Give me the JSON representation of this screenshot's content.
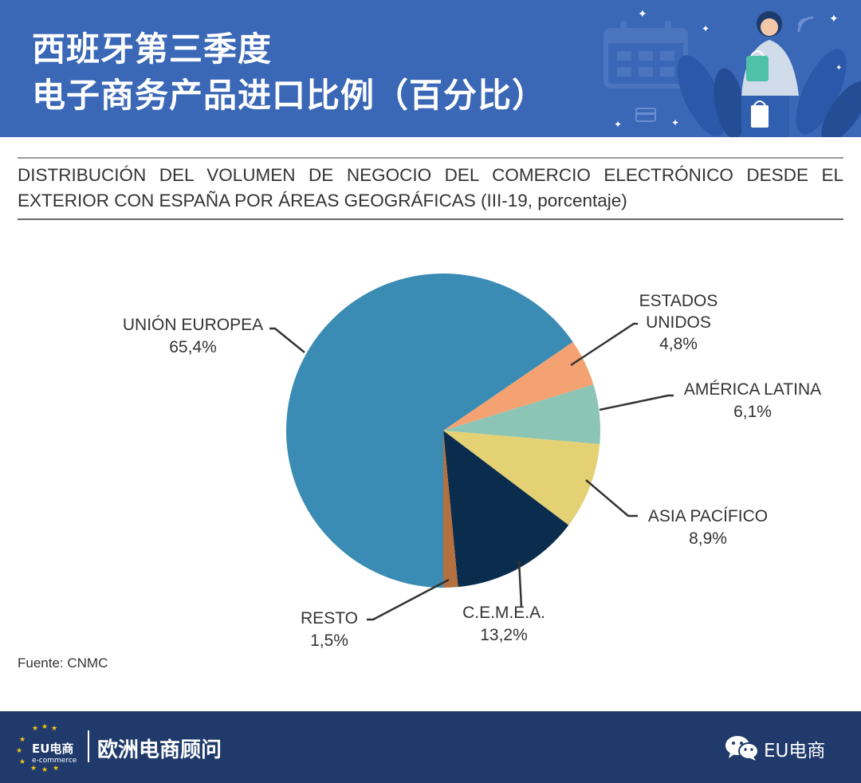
{
  "header": {
    "title_line1": "西班牙第三季度",
    "title_line2": "电子商务产品进口比例（百分比）",
    "background_color": "#3a67b6"
  },
  "chart_title": "DISTRIBUCIÓN DEL VOLUMEN DE NEGOCIO DEL COMERCIO ELECTRÓNICO DESDE EL EXTERIOR CON ESPAÑA POR ÁREAS GEOGRÁFICAS (III-19, porcentaje)",
  "chart_data": {
    "type": "pie",
    "unit": "%",
    "slices": [
      {
        "name": "UNIÓN EUROPEA",
        "value": 65.4,
        "label_value": "65,4%",
        "color": "#3a8cb5"
      },
      {
        "name": "ESTADOS UNIDOS",
        "value": 4.8,
        "label_value": "4,8%",
        "color": "#f4a271"
      },
      {
        "name": "AMÉRICA LATINA",
        "value": 6.1,
        "label_value": "6,1%",
        "color": "#8cc5b6"
      },
      {
        "name": "ASIA PACÍFICO",
        "value": 8.9,
        "label_value": "8,9%",
        "color": "#e4d173"
      },
      {
        "name": "C.E.M.E.A.",
        "value": 13.2,
        "label_value": "13,2%",
        "color": "#0b2d4d"
      },
      {
        "name": "RESTO",
        "value": 1.5,
        "label_value": "1,5%",
        "color": "#b5703f"
      }
    ]
  },
  "source": "Fuente: CNMC",
  "footer": {
    "logo_text": "EU电商",
    "logo_subtext": "e-commerce",
    "brand_name": "欧洲电商顾问",
    "wechat_icon": "wechat-icon",
    "account_name": "EU电商",
    "background_color": "#1f3a6b"
  }
}
